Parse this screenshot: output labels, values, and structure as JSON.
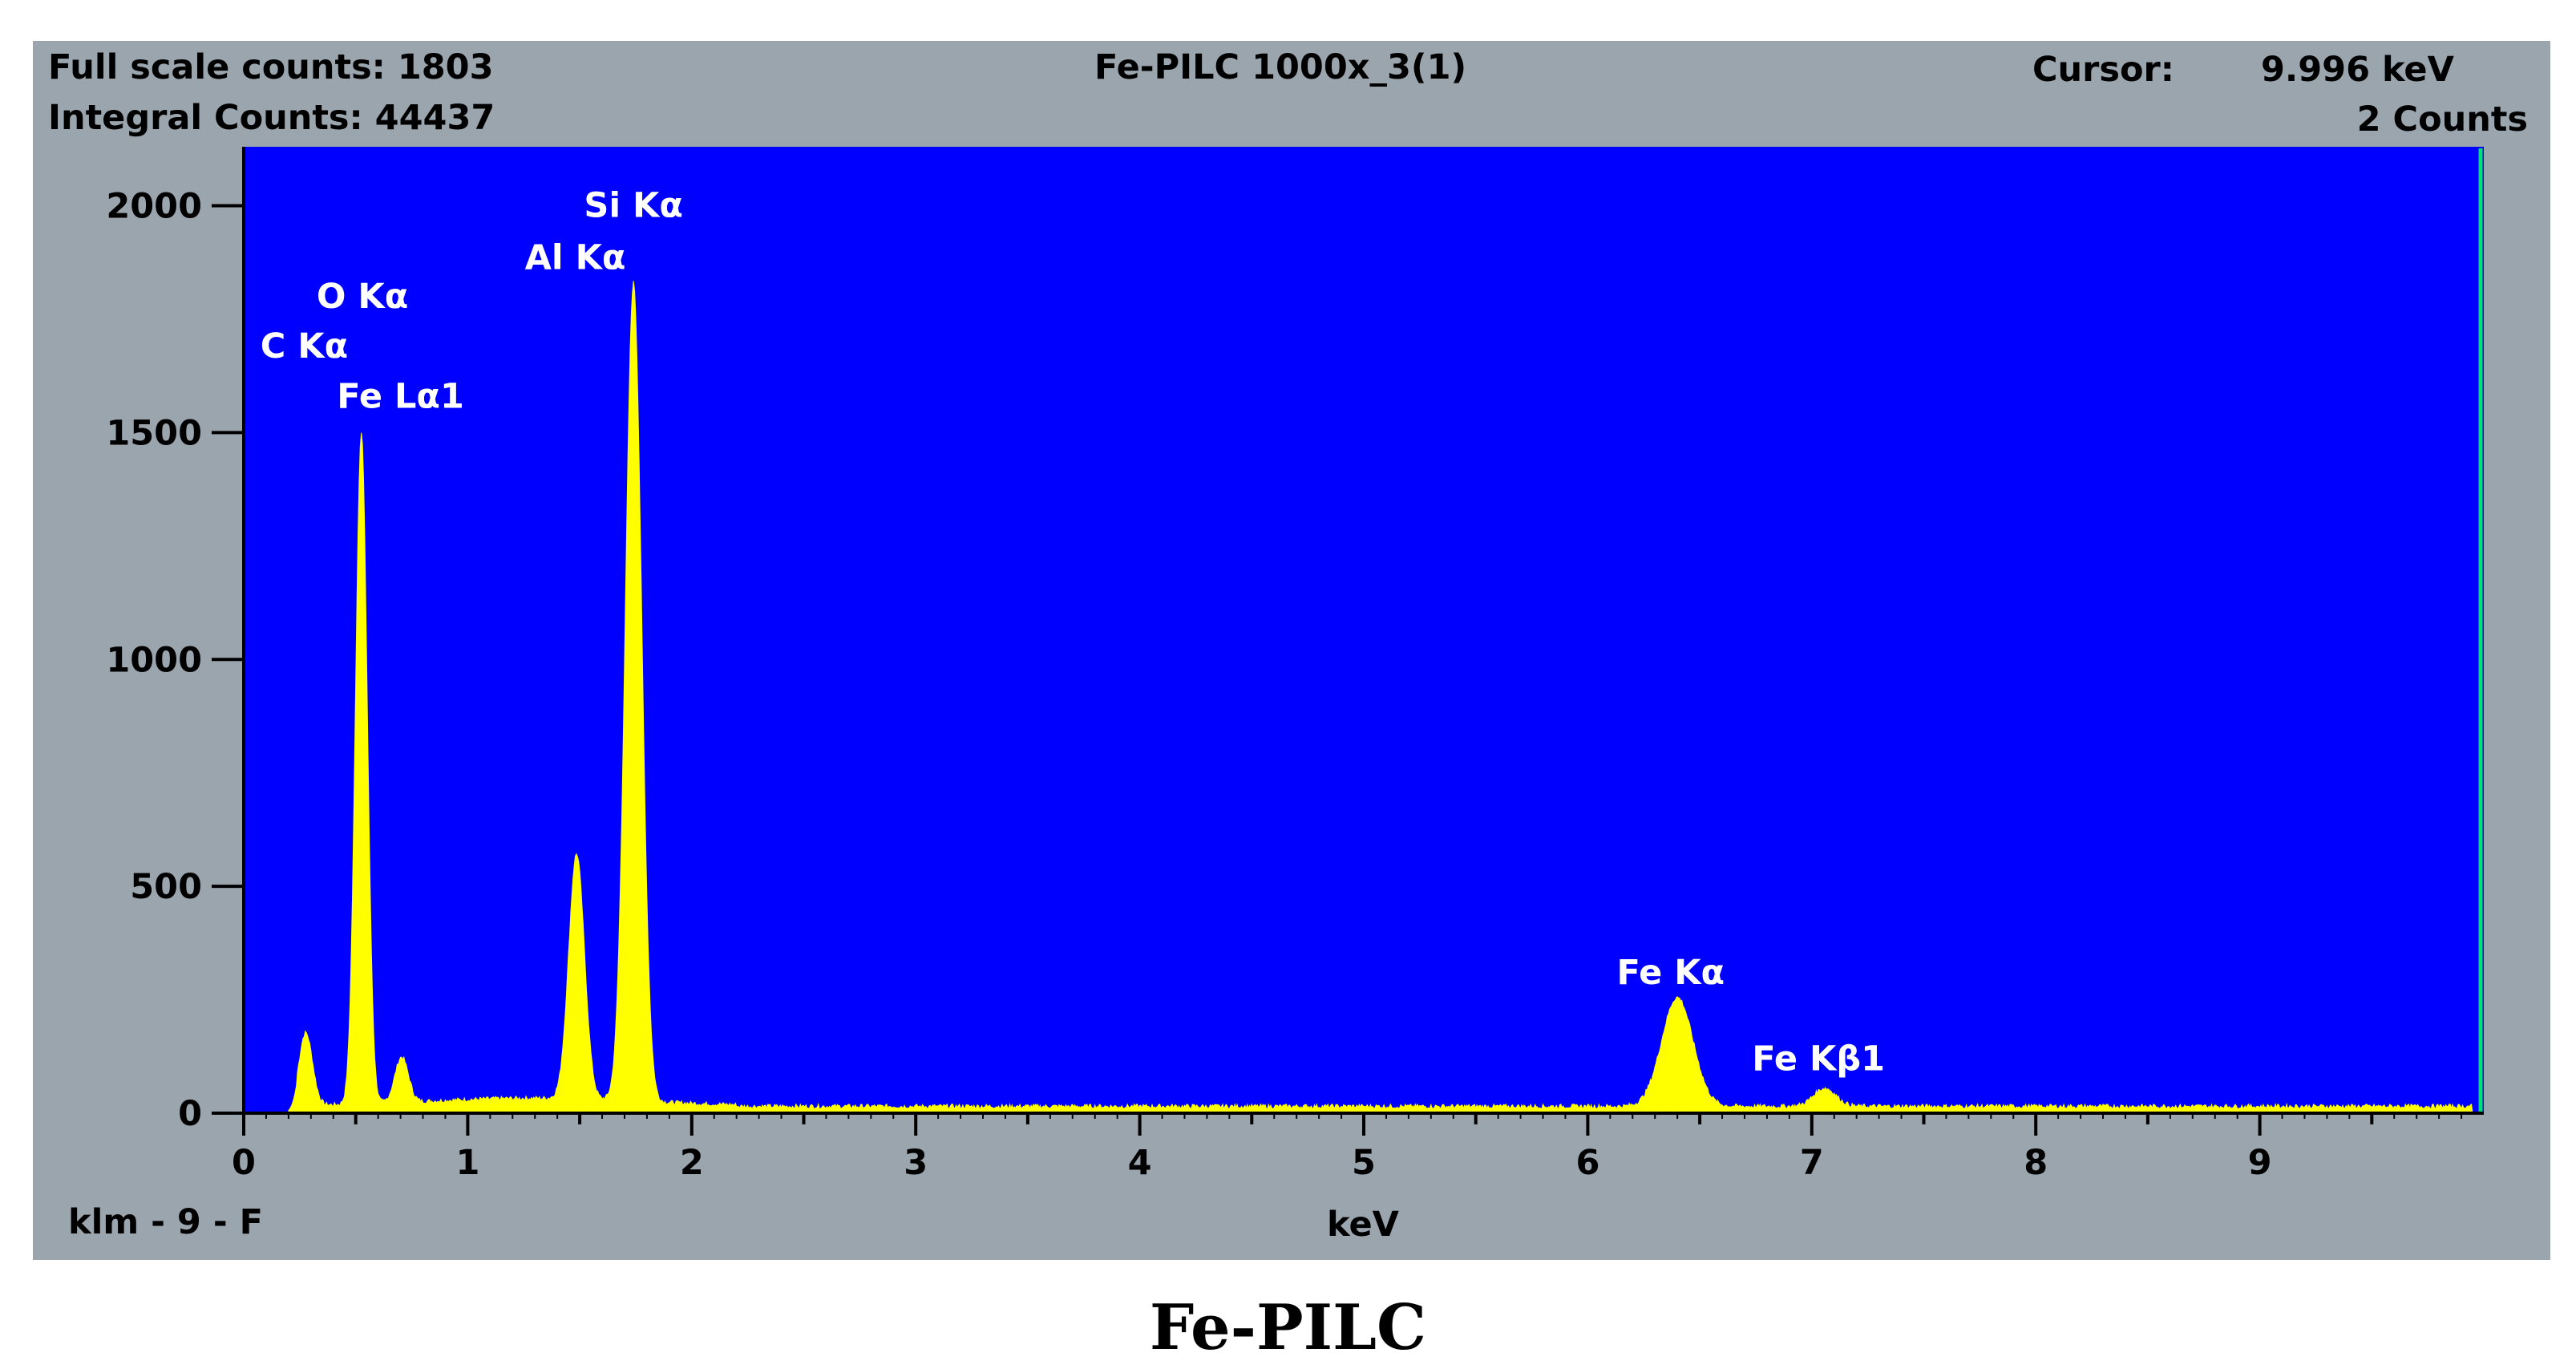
{
  "header": {
    "full_scale_label": "Full scale counts: 1803",
    "integral_label": "Integral Counts: 44437",
    "sample_title": "Fe-PILC 1000x_3(1)",
    "cursor_label": "Cursor:",
    "cursor_value": "9.996 keV",
    "cursor_counts": "2 Counts"
  },
  "footer": {
    "sample_id": "klm - 9 - F",
    "xlabel": "keV"
  },
  "caption": "Fe-PILC",
  "colors": {
    "panel": "#9aa5ad",
    "plot_bg": "#0000ff",
    "spectrum": "#ffff00",
    "axis": "#000000",
    "cursor": "#00e070"
  },
  "chart_data": {
    "type": "area",
    "xlabel": "keV",
    "ylabel": "",
    "xlim": [
      0,
      10
    ],
    "ylim": [
      0,
      2130
    ],
    "x_ticks": [
      0,
      1,
      2,
      3,
      4,
      5,
      6,
      7,
      8,
      9
    ],
    "y_ticks": [
      0,
      500,
      1000,
      1500,
      2000
    ],
    "cursor_keV": 9.996,
    "baseline_counts": 15,
    "peaks": [
      {
        "label": "C Kα",
        "keV": 0.277,
        "counts": 160,
        "width": 0.03
      },
      {
        "label": "O Kα",
        "keV": 0.525,
        "counts": 1480,
        "width": 0.026
      },
      {
        "label": "Fe Lα1",
        "keV": 0.705,
        "counts": 100,
        "width": 0.03
      },
      {
        "label": "Al Kα",
        "keV": 1.486,
        "counts": 540,
        "width": 0.035
      },
      {
        "label": "Si Kα",
        "keV": 1.74,
        "counts": 1803,
        "width": 0.036
      },
      {
        "label": "Fe Kα",
        "keV": 6.4,
        "counts": 240,
        "width": 0.07
      },
      {
        "label": "Fe Kβ1",
        "keV": 7.058,
        "counts": 40,
        "width": 0.05
      }
    ],
    "peak_labels": [
      {
        "text": "Si Kα",
        "keV": 1.74,
        "counts": 1975
      },
      {
        "text": "Al Kα",
        "keV": 1.48,
        "counts": 1860
      },
      {
        "text": "O Kα",
        "keV": 0.53,
        "counts": 1775
      },
      {
        "text": "C Kα",
        "keV": 0.27,
        "counts": 1665
      },
      {
        "text": "Fe Lα1",
        "keV": 0.7,
        "counts": 1555
      },
      {
        "text": "Fe Kα",
        "keV": 6.37,
        "counts": 285
      },
      {
        "text": "Fe Kβ1",
        "keV": 7.03,
        "counts": 95
      }
    ]
  }
}
